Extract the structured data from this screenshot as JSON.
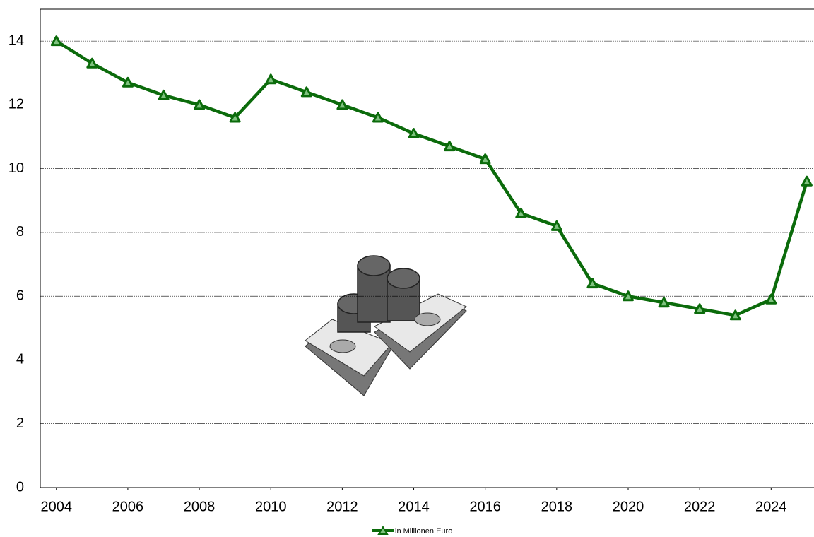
{
  "chart_data": {
    "type": "line",
    "x": [
      2004,
      2005,
      2006,
      2007,
      2008,
      2009,
      2010,
      2011,
      2012,
      2013,
      2014,
      2015,
      2016,
      2017,
      2018,
      2019,
      2020,
      2021,
      2022,
      2023,
      2024,
      2025
    ],
    "series": [
      {
        "name": "in Millionen Euro",
        "color": "#0b6b0b",
        "values": [
          14.0,
          13.3,
          12.7,
          12.3,
          12.0,
          11.6,
          12.8,
          12.4,
          12.0,
          11.6,
          11.1,
          10.7,
          10.3,
          8.6,
          8.2,
          6.4,
          6.0,
          5.8,
          5.6,
          5.4,
          5.9,
          9.6
        ]
      }
    ],
    "xlim": [
      2003.55,
      2025.2
    ],
    "xticks": [
      2004,
      2006,
      2008,
      2010,
      2012,
      2014,
      2016,
      2018,
      2020,
      2022,
      2024
    ],
    "ylim": [
      0,
      15
    ],
    "yticks": [
      0,
      2,
      4,
      6,
      8,
      10,
      12,
      14
    ],
    "grid": true,
    "legend": "bottom"
  }
}
